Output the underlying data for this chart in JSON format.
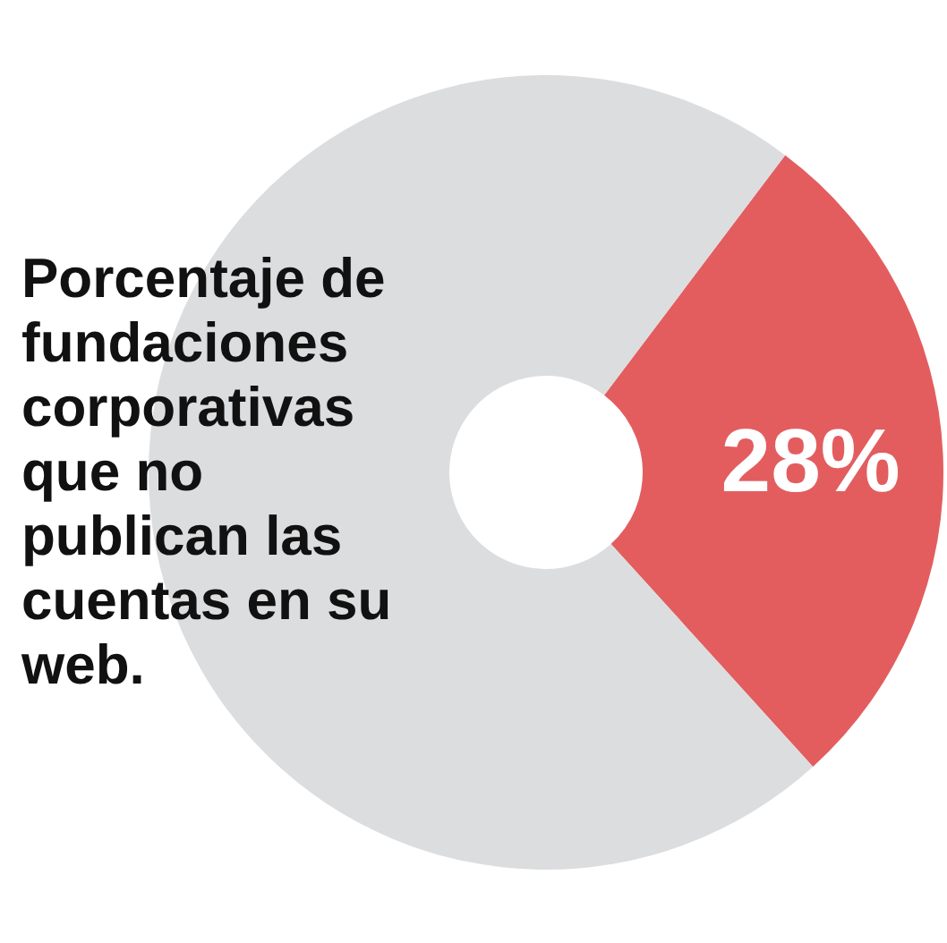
{
  "chart_data": {
    "type": "donut",
    "title": "Porcentaje de fundaciones corporativas que no publican las cuentas en su web.",
    "categories": [
      null,
      null
    ],
    "values": [
      28,
      72
    ],
    "colors": [
      "#e35d5f",
      "#dcdddf"
    ],
    "value_labels": [
      "28%",
      null
    ]
  }
}
